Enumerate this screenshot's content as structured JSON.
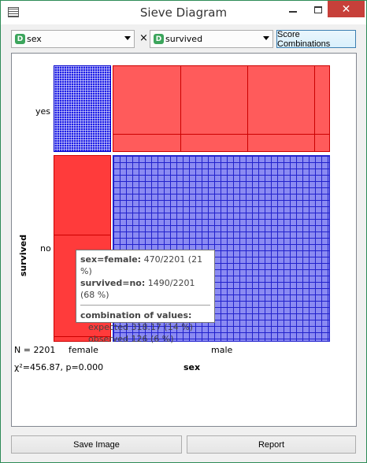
{
  "window": {
    "title": "Sieve Diagram"
  },
  "controls": {
    "x_variable": {
      "badge": "D",
      "value": "sex"
    },
    "times": "×",
    "y_variable": {
      "badge": "D",
      "value": "survived"
    },
    "score_button": "Score Combinations"
  },
  "diagram": {
    "y_axis_title": "survived",
    "x_axis_title": "sex",
    "y_labels": [
      "yes",
      "no"
    ],
    "x_labels": [
      "female",
      "male"
    ],
    "n_text": "N = 2201",
    "chi_text": "χ²=456.87, p=0.000",
    "colors": {
      "over_expected_blue": "#1f1fe6",
      "under_expected_red": "#ff5b5b"
    }
  },
  "tooltip": {
    "line1_key": "sex=female:",
    "line1_val": " 470/2201 (21 %)",
    "line2_key": "survived=no:",
    "line2_val": " 1490/2201 (68 %)",
    "header": "combination of values:",
    "expected": "expected 318.17 (14 %)",
    "observed": "observed 126 (6 %)"
  },
  "buttons": {
    "save": "Save Image",
    "report": "Report"
  }
}
